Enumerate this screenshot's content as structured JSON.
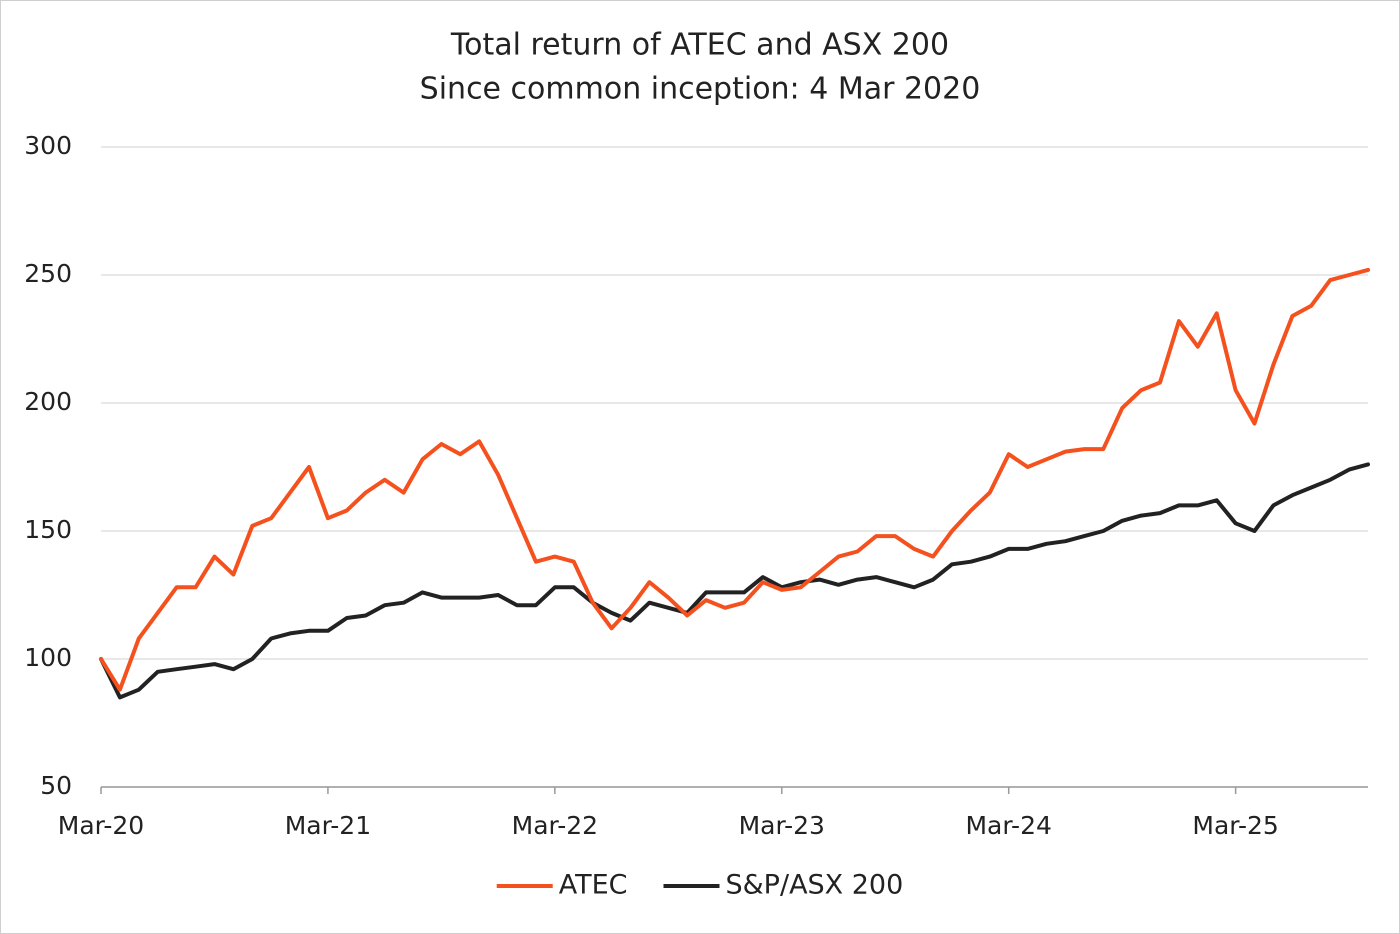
{
  "chart_data": {
    "type": "line",
    "title": "Total return of ATEC and ASX 200",
    "subtitle": "Since common inception: 4 Mar 2020",
    "categories": [
      "Mar-20",
      null,
      null,
      null,
      null,
      null,
      null,
      null,
      null,
      null,
      null,
      null,
      "Mar-21",
      null,
      null,
      null,
      null,
      null,
      null,
      null,
      null,
      null,
      null,
      null,
      "Mar-22",
      null,
      null,
      null,
      null,
      null,
      null,
      null,
      null,
      null,
      null,
      null,
      "Mar-23",
      null,
      null,
      null,
      null,
      null,
      null,
      null,
      null,
      null,
      null,
      null,
      "Mar-24",
      null,
      null,
      null,
      null,
      null,
      null,
      null,
      null,
      null,
      null,
      null,
      "Mar-25",
      null,
      null,
      null,
      null,
      null,
      null,
      null
    ],
    "series": [
      {
        "name": "ATEC",
        "color": "#f4511e",
        "values": [
          100,
          88,
          108,
          118,
          128,
          128,
          140,
          133,
          152,
          155,
          165,
          175,
          155,
          158,
          165,
          170,
          165,
          178,
          184,
          180,
          185,
          172,
          155,
          138,
          140,
          138,
          122,
          112,
          120,
          130,
          124,
          117,
          123,
          120,
          122,
          130,
          127,
          128,
          134,
          140,
          142,
          148,
          148,
          143,
          140,
          150,
          158,
          165,
          180,
          175,
          178,
          181,
          182,
          182,
          198,
          205,
          208,
          232,
          222,
          235,
          205,
          192,
          215,
          234,
          238,
          248,
          250,
          252
        ]
      },
      {
        "name": "S&P/ASX 200",
        "color": "#222222",
        "values": [
          100,
          85,
          88,
          95,
          96,
          97,
          98,
          96,
          100,
          108,
          110,
          111,
          111,
          116,
          117,
          121,
          122,
          126,
          124,
          124,
          124,
          125,
          121,
          121,
          128,
          128,
          122,
          118,
          115,
          122,
          120,
          118,
          126,
          126,
          126,
          132,
          128,
          130,
          131,
          129,
          131,
          132,
          130,
          128,
          131,
          137,
          138,
          140,
          143,
          143,
          145,
          146,
          148,
          150,
          154,
          156,
          157,
          160,
          160,
          162,
          153,
          150,
          160,
          164,
          167,
          170,
          174,
          176
        ]
      }
    ],
    "ylim": [
      50,
      300
    ],
    "yticks": [
      50,
      100,
      150,
      200,
      250,
      300
    ],
    "grid": true
  }
}
